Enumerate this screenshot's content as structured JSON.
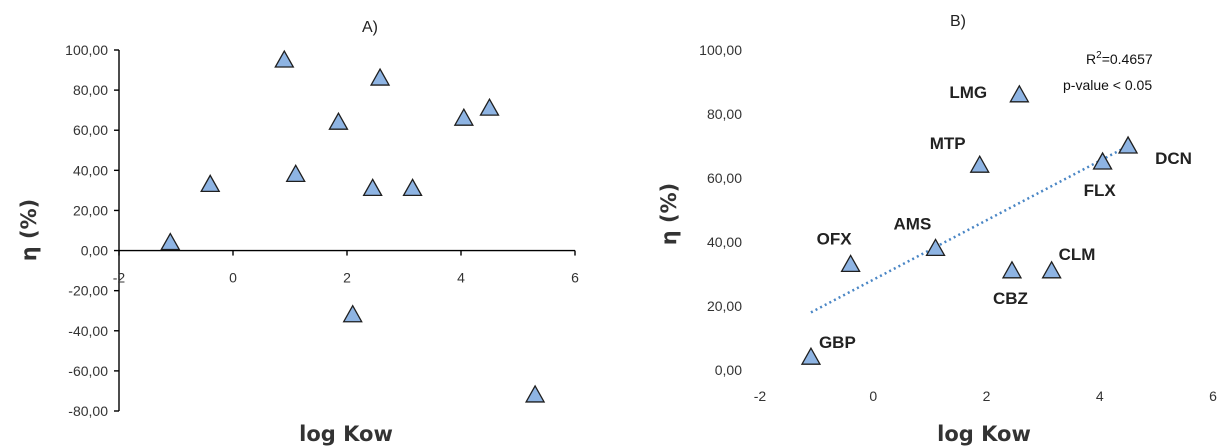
{
  "chart_data": [
    {
      "type": "scatter",
      "title": "A)",
      "xlabel": "log Kow",
      "ylabel": "η (%)",
      "xlim": [
        -2,
        6
      ],
      "ylim": [
        -80,
        100
      ],
      "xticks": [
        "-2",
        "0",
        "2",
        "4",
        "6"
      ],
      "yticks": [
        "100,00",
        "80,00",
        "60,00",
        "40,00",
        "20,00",
        "0,00",
        "-20,00",
        "-40,00",
        "-60,00",
        "-80,00"
      ],
      "grid": false,
      "points": [
        {
          "x": -1.1,
          "y": 4
        },
        {
          "x": -0.4,
          "y": 33
        },
        {
          "x": 0.9,
          "y": 95
        },
        {
          "x": 1.1,
          "y": 38
        },
        {
          "x": 1.85,
          "y": 64
        },
        {
          "x": 2.1,
          "y": -32
        },
        {
          "x": 2.45,
          "y": 31
        },
        {
          "x": 2.58,
          "y": 86
        },
        {
          "x": 3.15,
          "y": 31
        },
        {
          "x": 4.05,
          "y": 66
        },
        {
          "x": 4.5,
          "y": 71
        },
        {
          "x": 5.3,
          "y": -72
        }
      ]
    },
    {
      "type": "scatter",
      "title": "B)",
      "xlabel": "log Kow",
      "ylabel": "η (%)",
      "xlim": [
        -2,
        6
      ],
      "ylim": [
        0,
        100
      ],
      "xticks": [
        "-2",
        "0",
        "2",
        "4",
        "6"
      ],
      "yticks": [
        "100,00",
        "80,00",
        "60,00",
        "40,00",
        "20,00",
        "0,00"
      ],
      "grid": false,
      "annotation": {
        "r2": "R²=0.4657",
        "r2_base": "R",
        "r2_sup": "2",
        "r2_rest": "=0.4657",
        "pvalue": "p-value < 0.05"
      },
      "trendline": {
        "x": [
          -1.1,
          4.5
        ],
        "y": [
          18,
          70
        ]
      },
      "points": [
        {
          "label": "GBP",
          "x": -1.1,
          "y": 4
        },
        {
          "label": "OFX",
          "x": -0.4,
          "y": 33
        },
        {
          "label": "AMS",
          "x": 1.1,
          "y": 38
        },
        {
          "label": "MTP",
          "x": 1.88,
          "y": 64
        },
        {
          "label": "CBZ",
          "x": 2.45,
          "y": 31
        },
        {
          "label": "LMG",
          "x": 2.58,
          "y": 86
        },
        {
          "label": "CLM",
          "x": 3.15,
          "y": 31
        },
        {
          "label": "FLX",
          "x": 4.05,
          "y": 65
        },
        {
          "label": "DCN",
          "x": 4.5,
          "y": 70
        }
      ]
    }
  ]
}
